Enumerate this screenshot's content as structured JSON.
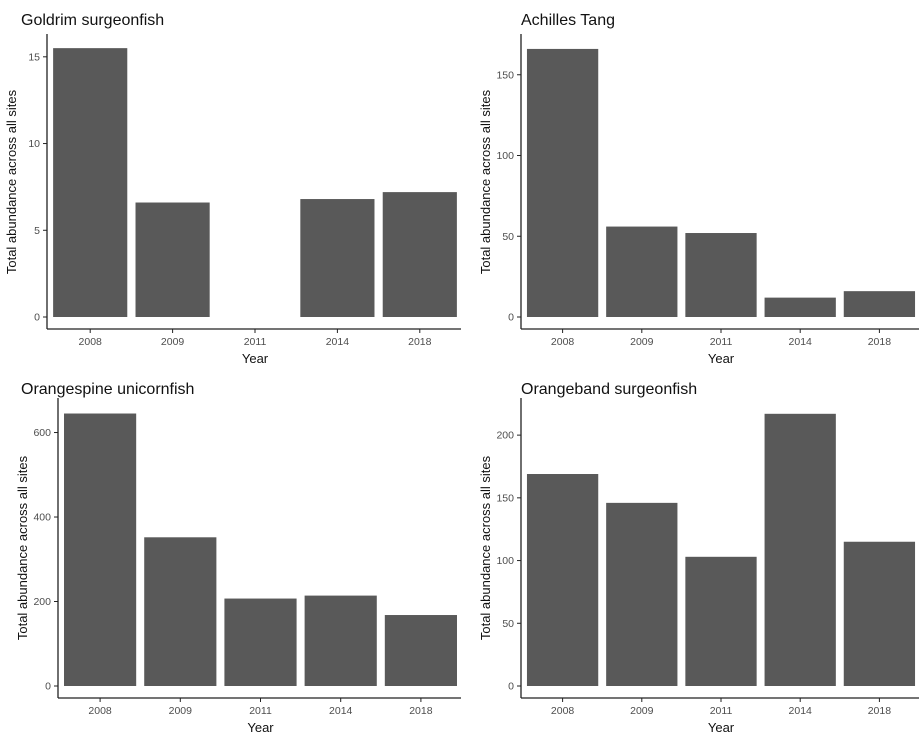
{
  "chart_data": [
    {
      "type": "bar",
      "title": "Goldrim surgeonfish",
      "xlabel": "Year",
      "ylabel": "Total abundance across all sites",
      "categories": [
        "2008",
        "2009",
        "2011",
        "2014",
        "2018"
      ],
      "values": [
        15.5,
        6.6,
        0,
        6.8,
        7.2
      ],
      "ylim": [
        0,
        16.2
      ],
      "yticks": [
        0,
        5,
        10,
        15
      ],
      "bar_color": "#595959"
    },
    {
      "type": "bar",
      "title": "Achilles Tang",
      "xlabel": "Year",
      "ylabel": "Total abundance across all sites",
      "categories": [
        "2008",
        "2009",
        "2011",
        "2014",
        "2018"
      ],
      "values": [
        166,
        56,
        52,
        12,
        16
      ],
      "ylim": [
        0,
        174
      ],
      "yticks": [
        0,
        50,
        100,
        150
      ],
      "bar_color": "#595959"
    },
    {
      "type": "bar",
      "title": "Orangespine unicornfish",
      "xlabel": "Year",
      "ylabel": "Total abundance across all sites",
      "categories": [
        "2008",
        "2009",
        "2011",
        "2014",
        "2018"
      ],
      "values": [
        645,
        352,
        207,
        214,
        168
      ],
      "ylim": [
        0,
        677
      ],
      "yticks": [
        0,
        200,
        400,
        600
      ],
      "bar_color": "#595959"
    },
    {
      "type": "bar",
      "title": "Orangeband surgeonfish",
      "xlabel": "Year",
      "ylabel": "Total abundance across all sites",
      "categories": [
        "2008",
        "2009",
        "2011",
        "2014",
        "2018"
      ],
      "values": [
        169,
        146,
        103,
        217,
        115
      ],
      "ylim": [
        0,
        228
      ],
      "yticks": [
        0,
        50,
        100,
        150,
        200
      ],
      "bar_color": "#595959"
    }
  ]
}
